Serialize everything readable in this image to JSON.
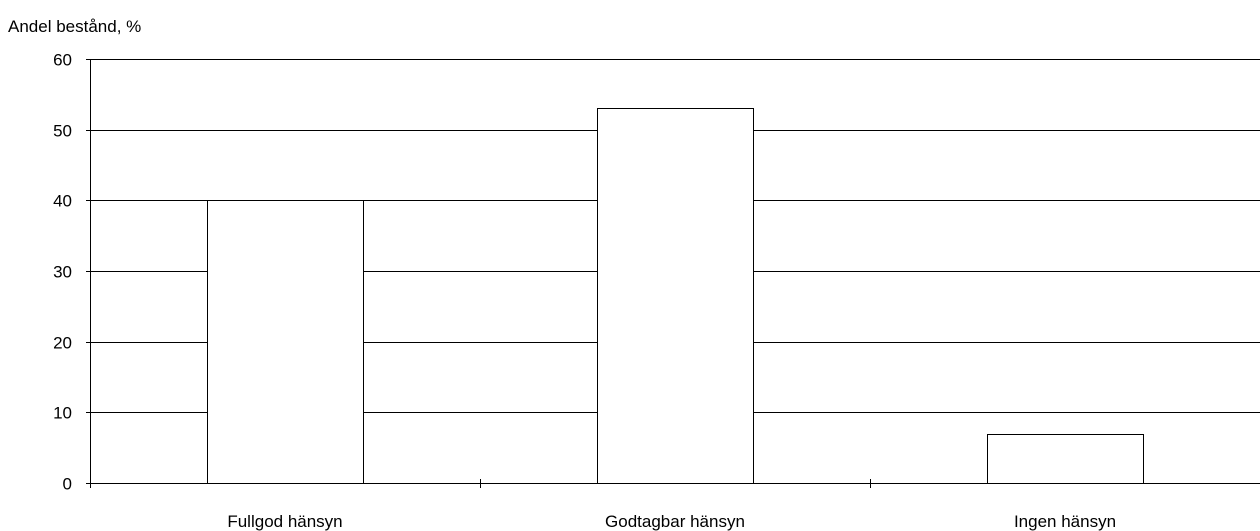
{
  "chart_data": {
    "type": "bar",
    "title": "",
    "ylabel": "Andel bestånd, %",
    "xlabel": "",
    "categories": [
      "Fullgod hänsyn",
      "Godtagbar hänsyn",
      "Ingen hänsyn"
    ],
    "values": [
      40,
      53,
      7
    ],
    "ylim": [
      0,
      60
    ],
    "yticks": [
      "0",
      "10",
      "20",
      "30",
      "40",
      "50",
      "60"
    ],
    "grid": true,
    "legend": "none",
    "colors": {
      "bar_fill": "#ffffff",
      "bar_stroke": "#000000",
      "grid": "#000000"
    }
  }
}
